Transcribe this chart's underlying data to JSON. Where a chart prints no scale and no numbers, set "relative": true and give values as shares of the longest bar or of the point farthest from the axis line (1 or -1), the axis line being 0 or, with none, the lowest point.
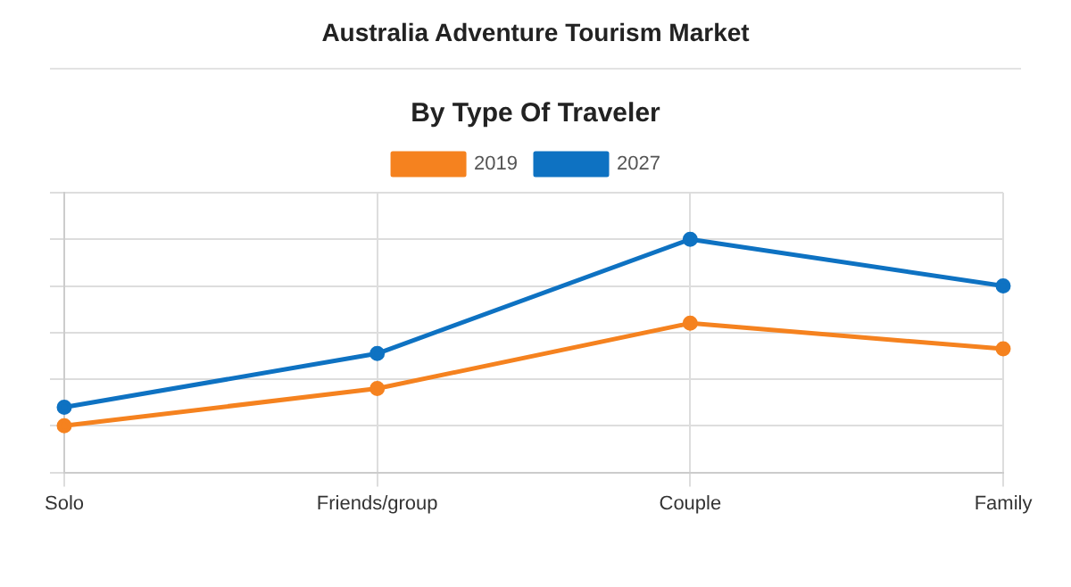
{
  "chart_data": {
    "type": "line",
    "title": "Australia Adventure Tourism Market",
    "subtitle": "By Type Of Traveler",
    "categories": [
      "Solo",
      "Friends/group",
      "Couple",
      "Family"
    ],
    "relative": true,
    "series": [
      {
        "name": "2019",
        "color": "#f5821f",
        "values": [
          0.2,
          0.36,
          0.64,
          0.53
        ]
      },
      {
        "name": "2027",
        "color": "#0e72c2",
        "values": [
          0.28,
          0.51,
          1,
          0.8
        ]
      }
    ],
    "grid": true,
    "legend": "top",
    "marker": "circle",
    "line_style": "solid"
  }
}
